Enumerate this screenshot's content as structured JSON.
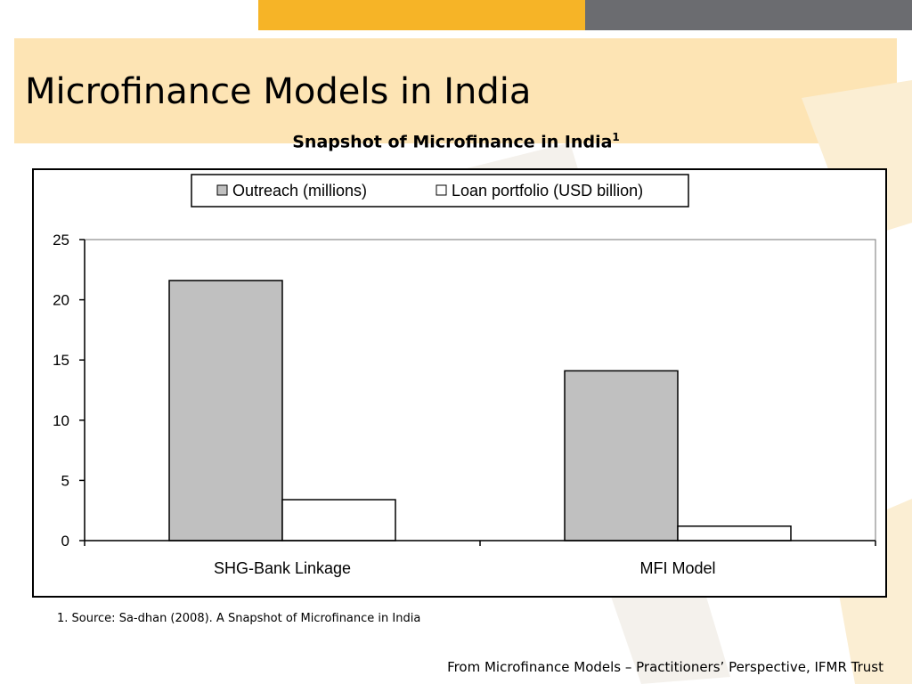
{
  "slide": {
    "title": "Microfinance Models in India",
    "subtitle": "Snapshot of Microfinance in India",
    "subtitle_sup": "1",
    "footnote": "1.  Source:  Sa-dhan (2008).  A Snapshot of Microfinance in India",
    "credit": "From Microfinance Models – Practitioners’ Perspective, IFMR Trust"
  },
  "colors": {
    "accent_yellow": "#f6b427",
    "accent_gray": "#6b6c70",
    "title_band": "#fde4b4",
    "series_outreach": "#c0c0c0",
    "series_loan": "#ffffff"
  },
  "chart_data": {
    "type": "bar",
    "title": "",
    "xlabel": "",
    "ylabel": "",
    "categories": [
      "SHG-Bank Linkage",
      "MFI Model"
    ],
    "series": [
      {
        "name": "Outreach (millions)",
        "values": [
          21.6,
          14.1
        ]
      },
      {
        "name": "Loan portfolio (USD billion)",
        "values": [
          3.4,
          1.2
        ]
      }
    ],
    "ylim": [
      0,
      25
    ],
    "yticks": [
      0,
      5,
      10,
      15,
      20,
      25
    ],
    "ytick_labels": [
      "0",
      "5",
      "10",
      "15",
      "20",
      "25"
    ],
    "grid": false,
    "legend_position": "top-center"
  }
}
